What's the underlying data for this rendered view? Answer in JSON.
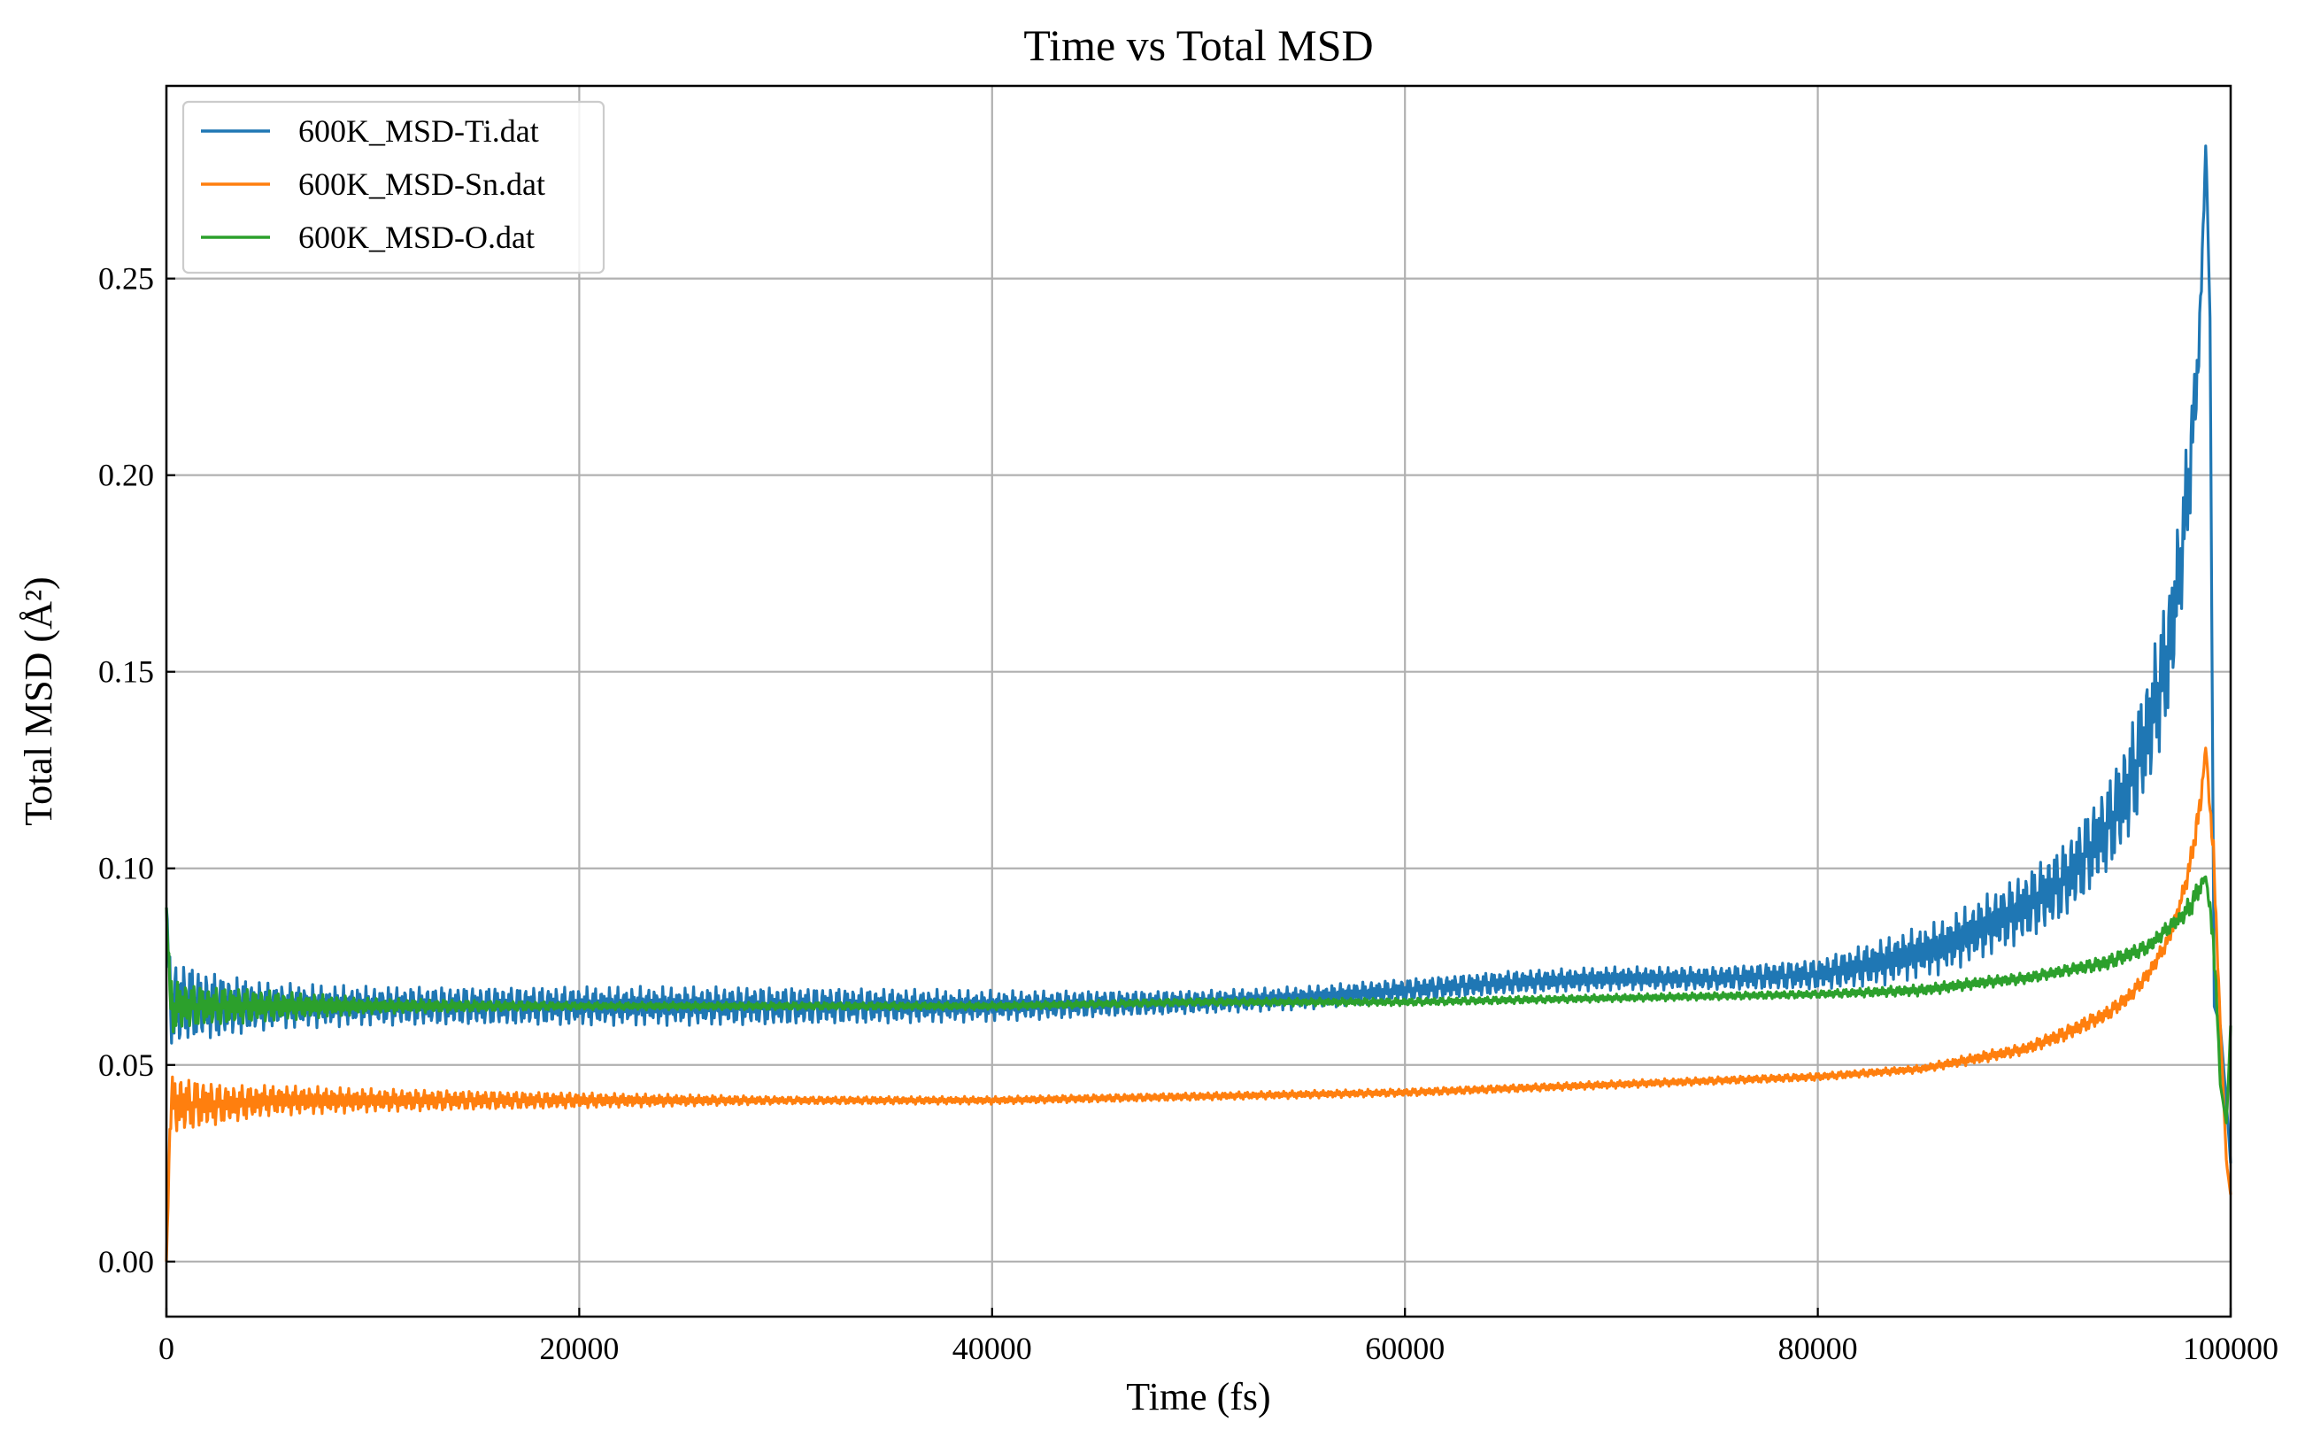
{
  "chart_data": {
    "type": "line",
    "title": "Time vs Total MSD",
    "xlabel": "Time (fs)",
    "ylabel": "Total MSD (Å²)",
    "xlim": [
      0,
      100000
    ],
    "ylim": [
      -0.014,
      0.299
    ],
    "xticks": [
      0,
      20000,
      40000,
      60000,
      80000,
      100000
    ],
    "xtick_labels": [
      "0",
      "20000",
      "40000",
      "60000",
      "80000",
      "100000"
    ],
    "yticks": [
      0.0,
      0.05,
      0.1,
      0.15,
      0.2,
      0.25
    ],
    "ytick_labels": [
      "0.00",
      "0.05",
      "0.10",
      "0.15",
      "0.20",
      "0.25"
    ],
    "grid": true,
    "legend_position": "top-left",
    "series": [
      {
        "name": "600K_MSD-Ti.dat",
        "color": "#1f77b4",
        "x": [
          0,
          200,
          500,
          1000,
          2000,
          3000,
          5000,
          10000,
          20000,
          30000,
          40000,
          50000,
          55000,
          60000,
          65000,
          70000,
          75000,
          80000,
          83000,
          86000,
          88000,
          90000,
          92000,
          94000,
          95000,
          96000,
          97000,
          97500,
          98000,
          98500,
          98800,
          99000,
          99200,
          99500,
          99800,
          100000
        ],
        "values": [
          0.09,
          0.066,
          0.065,
          0.066,
          0.065,
          0.065,
          0.065,
          0.065,
          0.065,
          0.065,
          0.065,
          0.066,
          0.067,
          0.069,
          0.071,
          0.072,
          0.072,
          0.073,
          0.076,
          0.08,
          0.085,
          0.09,
          0.097,
          0.11,
          0.12,
          0.135,
          0.155,
          0.175,
          0.2,
          0.235,
          0.285,
          0.24,
          0.065,
          0.06,
          0.04,
          0.025
        ],
        "amplitudes": [
          0.0,
          0.012,
          0.012,
          0.01,
          0.009,
          0.008,
          0.006,
          0.005,
          0.005,
          0.005,
          0.004,
          0.003,
          0.003,
          0.003,
          0.003,
          0.003,
          0.003,
          0.004,
          0.006,
          0.007,
          0.008,
          0.009,
          0.01,
          0.012,
          0.014,
          0.016,
          0.018,
          0.016,
          0.015,
          0.008,
          0.0,
          0.0,
          0.0,
          0.0,
          0.0,
          0.0
        ]
      },
      {
        "name": "600K_MSD-Sn.dat",
        "color": "#ff7f0e",
        "x": [
          0,
          200,
          500,
          1000,
          2000,
          3000,
          5000,
          10000,
          20000,
          30000,
          40000,
          50000,
          60000,
          70000,
          80000,
          85000,
          88000,
          90000,
          92000,
          94000,
          95000,
          96000,
          97000,
          97500,
          98000,
          98500,
          98800,
          99200,
          99500,
          99800,
          100000
        ],
        "values": [
          0.0,
          0.04,
          0.04,
          0.04,
          0.04,
          0.04,
          0.041,
          0.041,
          0.041,
          0.041,
          0.041,
          0.042,
          0.043,
          0.045,
          0.047,
          0.049,
          0.052,
          0.054,
          0.058,
          0.063,
          0.067,
          0.073,
          0.082,
          0.09,
          0.1,
          0.115,
          0.131,
          0.1,
          0.06,
          0.025,
          0.017
        ],
        "amplitudes": [
          0.0,
          0.008,
          0.008,
          0.007,
          0.006,
          0.005,
          0.004,
          0.003,
          0.002,
          0.001,
          0.001,
          0.001,
          0.001,
          0.001,
          0.001,
          0.001,
          0.0015,
          0.0015,
          0.002,
          0.002,
          0.002,
          0.002,
          0.002,
          0.002,
          0.003,
          0.004,
          0.0,
          0.005,
          0.0,
          0.0,
          0.0
        ]
      },
      {
        "name": "600K_MSD-O.dat",
        "color": "#2ca02c",
        "x": [
          0,
          200,
          500,
          1000,
          2000,
          3000,
          5000,
          10000,
          20000,
          30000,
          40000,
          50000,
          60000,
          70000,
          80000,
          85000,
          88000,
          90000,
          92000,
          94000,
          95000,
          96000,
          97000,
          97500,
          98000,
          98500,
          98800,
          99200,
          99500,
          99800,
          100000
        ],
        "values": [
          0.09,
          0.065,
          0.065,
          0.065,
          0.065,
          0.065,
          0.065,
          0.065,
          0.065,
          0.065,
          0.065,
          0.066,
          0.066,
          0.067,
          0.068,
          0.069,
          0.071,
          0.072,
          0.074,
          0.076,
          0.078,
          0.08,
          0.085,
          0.087,
          0.09,
          0.095,
          0.098,
          0.08,
          0.045,
          0.035,
          0.06
        ],
        "amplitudes": [
          0.0,
          0.008,
          0.007,
          0.006,
          0.005,
          0.005,
          0.004,
          0.002,
          0.001,
          0.001,
          0.001,
          0.001,
          0.001,
          0.001,
          0.001,
          0.0015,
          0.0015,
          0.0015,
          0.0015,
          0.002,
          0.002,
          0.002,
          0.002,
          0.002,
          0.003,
          0.003,
          0.0,
          0.005,
          0.0,
          0.0,
          0.0
        ]
      }
    ]
  }
}
